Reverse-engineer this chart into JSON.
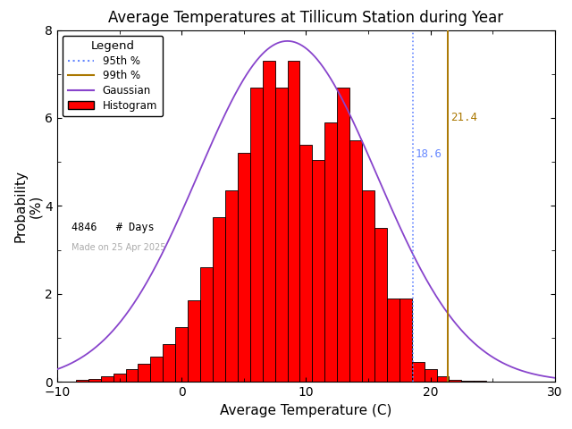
{
  "title": "Average Temperatures at Tillicum Station during Year",
  "xlabel": "Average Temperature (C)",
  "ylabel": "Probability\n(%)",
  "xlim": [
    -10,
    30
  ],
  "ylim": [
    0,
    8
  ],
  "yticks": [
    0,
    2,
    4,
    6,
    8
  ],
  "xticks": [
    -10,
    0,
    10,
    20,
    30
  ],
  "gauss_mean": 8.5,
  "gauss_std": 7.2,
  "gauss_peak": 7.75,
  "n_days": 4846,
  "p95": 18.6,
  "p99": 21.4,
  "bin_centers": [
    -8,
    -7,
    -6,
    -5,
    -4,
    -3,
    -2,
    -1,
    0,
    1,
    2,
    3,
    4,
    5,
    6,
    7,
    8,
    9,
    10,
    11,
    12,
    13,
    14,
    15,
    16,
    17,
    18,
    19,
    20,
    21,
    22,
    23,
    24,
    25,
    26
  ],
  "bar_heights": [
    0.05,
    0.07,
    0.12,
    0.18,
    0.28,
    0.42,
    0.58,
    0.85,
    1.25,
    1.85,
    2.6,
    3.75,
    4.35,
    5.2,
    6.7,
    7.3,
    6.7,
    7.3,
    5.4,
    5.05,
    5.9,
    6.7,
    5.5,
    4.35,
    3.5,
    1.9,
    1.9,
    0.45,
    0.28,
    0.12,
    0.05,
    0.03,
    0.02,
    0.01,
    0.005
  ],
  "hist_color": "#ff0000",
  "hist_edgecolor": "#000000",
  "gaussian_color": "#8844cc",
  "p95_color": "#6688ff",
  "p99_color": "#aa7700",
  "watermark": "Made on 25 Apr 2025",
  "watermark_color": "#aaaaaa",
  "background_color": "#ffffff",
  "title_fontsize": 12,
  "axis_fontsize": 11,
  "tick_fontsize": 10
}
